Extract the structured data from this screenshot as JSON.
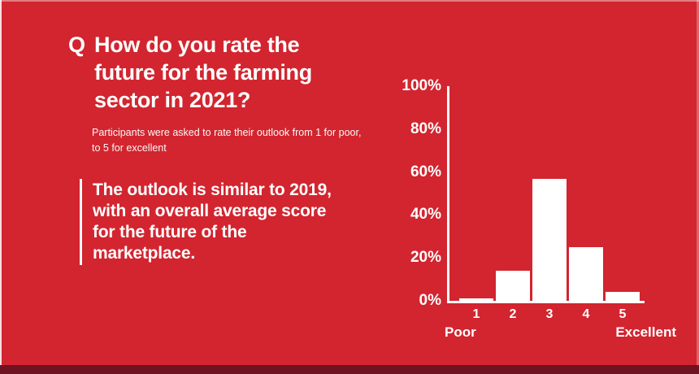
{
  "colors": {
    "background": "#d2252f",
    "footer_strip": "#6e1322",
    "text": "#ffffff",
    "axis": "#ffffff",
    "bar": "#ffffff"
  },
  "question": {
    "marker": "Q",
    "title": "How do you rate the\nfuture for the farming\nsector in 2021?",
    "subtitle": "Participants were asked to rate their outlook from 1 for poor,\nto 5 for excellent"
  },
  "quote": {
    "text": "The outlook is similar to 2019,\nwith an overall average score\nfor the future of the\nmarketplace."
  },
  "chart_data": {
    "type": "bar",
    "title": "",
    "categories": [
      "1",
      "2",
      "3",
      "4",
      "5"
    ],
    "values": [
      1,
      14,
      57,
      25,
      4
    ],
    "ylim": [
      0,
      100
    ],
    "yticks": [
      0,
      20,
      40,
      60,
      80,
      100
    ],
    "ytick_suffix": "%",
    "x_axis_left_label": "Poor",
    "x_axis_right_label": "Excellent",
    "xlabel": "",
    "ylabel": "",
    "grid": false,
    "legend": false,
    "bar_color": "#ffffff",
    "axis_color": "#ffffff"
  }
}
